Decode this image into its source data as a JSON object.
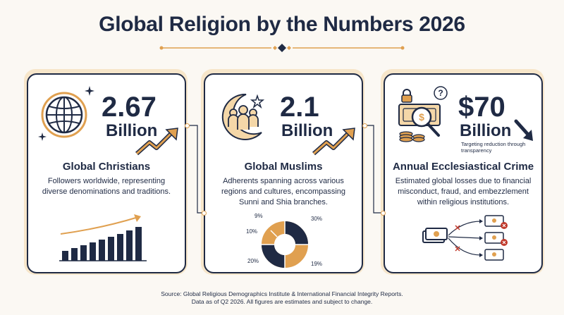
{
  "title": "Global Religion by the Numbers 2026",
  "colors": {
    "navy": "#1f2a44",
    "gold": "#e0a050",
    "accent_red": "#c0392b"
  },
  "cards": [
    {
      "number": "2.67",
      "unit": "Billion",
      "heading": "Global Christians",
      "description": "Followers worldwide, representing diverse denominations and traditions.",
      "icons": [
        "globe-icon",
        "sparkle-icon",
        "trend-up-arrow-icon",
        "bar-chart-icon"
      ]
    },
    {
      "number": "2.1",
      "unit": "Billion",
      "heading": "Global Muslims",
      "description": "Adherents spanning across various regions and cultures, encompassing Sunni and Shia branches.",
      "icons": [
        "crescent-star-people-icon",
        "trend-up-arrow-icon",
        "donut-chart-icon"
      ],
      "donut_percentages": [
        "9%",
        "30%",
        "10%",
        "20%",
        "19%"
      ]
    },
    {
      "number": "$70",
      "unit": "Billion",
      "note": "Targeting reduction through transparency",
      "heading": "Annual Ecclesiastical Crime",
      "description": "Estimated global losses due to financial misconduct, fraud, and embezzlement within religious institutions.",
      "icons": [
        "lock-icon",
        "question-bubble-icon",
        "money-magnifier-icon",
        "trend-down-arrow-icon",
        "money-flow-icon"
      ]
    }
  ],
  "footer": {
    "line1": "Source: Global Religious Demographics Institute & International Financial Integrity Reports.",
    "line2": "Data as of Q2 2026. All figures are estimates and subject to change."
  }
}
